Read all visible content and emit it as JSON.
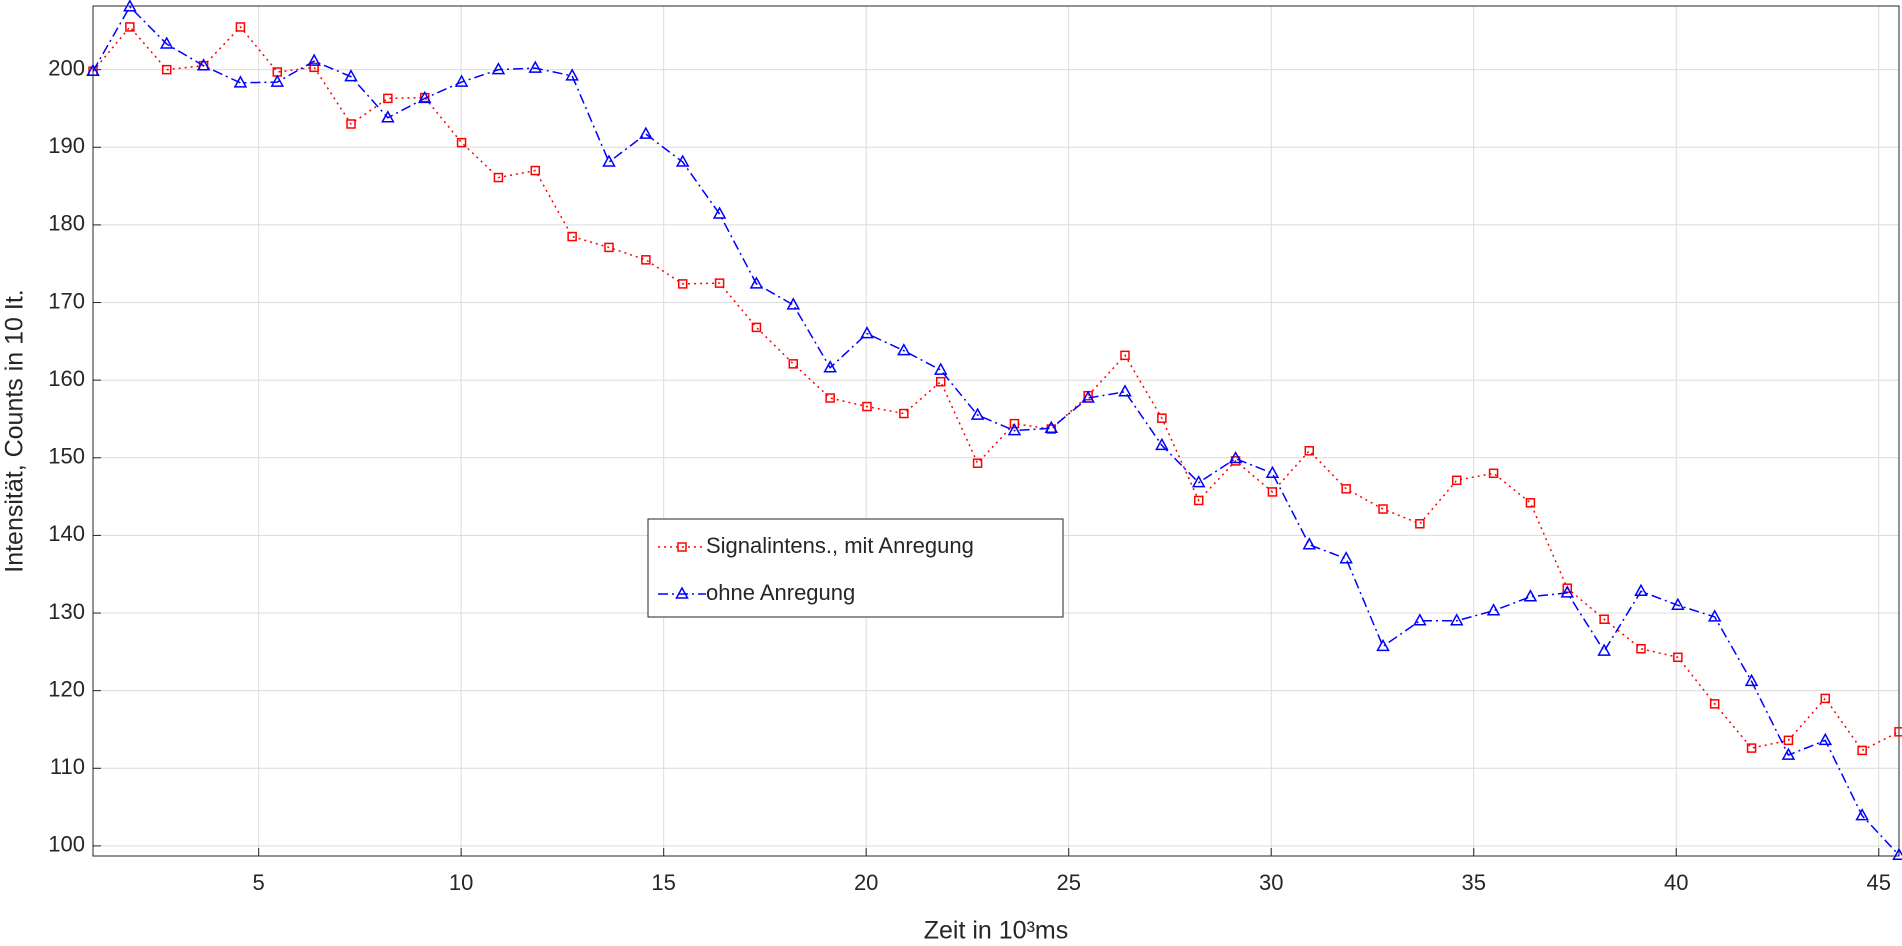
{
  "chart_data": {
    "type": "line",
    "xlabel": "Zeit in 10³ms",
    "ylabel": "Intensität, Counts in 10 It.",
    "x": [
      0.91,
      1.82,
      2.73,
      3.64,
      4.55,
      5.46,
      6.37,
      7.28,
      8.19,
      9.1,
      10.01,
      10.92,
      11.83,
      12.74,
      13.65,
      14.56,
      15.47,
      16.38,
      17.29,
      18.2,
      19.11,
      20.02,
      20.93,
      21.84,
      22.75,
      23.66,
      24.57,
      25.48,
      26.39,
      27.3,
      28.21,
      29.12,
      30.03,
      30.94,
      31.85,
      32.76,
      33.67,
      34.58,
      35.49,
      36.4,
      37.31,
      38.22,
      39.13,
      40.04,
      40.95,
      41.86,
      42.77,
      43.68,
      44.59,
      45.5
    ],
    "series": [
      {
        "name": "Signalintens., mit Anregung",
        "color": "#ff0000",
        "line": "dotted",
        "marker": "square",
        "values": [
          199.8,
          205.5,
          200,
          200.5,
          205.5,
          199.7,
          200.3,
          193,
          196.3,
          196.4,
          190.6,
          186.1,
          187,
          178.5,
          177.1,
          175.5,
          172.4,
          172.5,
          166.8,
          162.1,
          157.7,
          156.6,
          155.7,
          159.8,
          149.3,
          154.4,
          153.7,
          158,
          163.2,
          155.1,
          144.5,
          149.6,
          145.6,
          150.9,
          146,
          143.4,
          141.5,
          147.1,
          148,
          144.2,
          133.2,
          129.2,
          125.4,
          124.3,
          118.3,
          112.6,
          113.6,
          119,
          112.3,
          114.7
        ]
      },
      {
        "name": "ohne Anregung",
        "color": "#0000ff",
        "line": "dashdot",
        "marker": "triangle",
        "values": [
          199.8,
          208.1,
          203.3,
          200.5,
          198.3,
          198.4,
          201.1,
          199.1,
          193.8,
          196.3,
          198.4,
          200,
          200.2,
          199.2,
          188.1,
          191.7,
          188.1,
          181.4,
          172.4,
          169.7,
          161.6,
          166,
          163.8,
          161.3,
          155.5,
          153.5,
          153.8,
          157.7,
          158.5,
          151.6,
          146.8,
          149.9,
          148,
          138.8,
          137,
          125.7,
          129,
          129,
          130.3,
          132.1,
          132.6,
          125.1,
          132.8,
          131,
          129.5,
          121.2,
          111.7,
          113.6,
          103.9,
          98.8
        ]
      }
    ],
    "xlim": [
      0.91,
      45.5
    ],
    "ylim": [
      98.7,
      208.2
    ],
    "xticks": [
      5,
      10,
      15,
      20,
      25,
      30,
      35,
      40,
      45
    ],
    "yticks": [
      100,
      110,
      120,
      130,
      140,
      150,
      160,
      170,
      180,
      190,
      200
    ],
    "grid": true
  }
}
